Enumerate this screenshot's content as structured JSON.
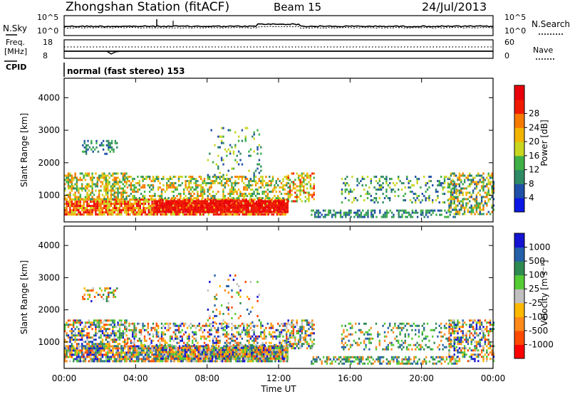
{
  "header": {
    "station_title": "Zhongshan Station (fitACF)",
    "beam_label": "Beam 15",
    "date_label": "24/Jul/2013"
  },
  "nsky_panel": {
    "left_label": "N.Sky",
    "right_label": "N.Search",
    "tick_top": "10^5",
    "tick_bottom": "10^0",
    "right_tick_top": "10^5",
    "right_tick_bottom": "10^0"
  },
  "freq_panel": {
    "left_label_line1": "Freq.",
    "left_label_line2": "[MHz]",
    "tick_top": "18",
    "tick_bottom": "8",
    "right_label": "Nave",
    "right_tick_top": "60",
    "right_tick_bottom": "0"
  },
  "cpid_panel": {
    "label": "CPID",
    "text": "normal (fast stereo) 153"
  },
  "colors": {
    "power_scale": [
      "#0a17e6",
      "#1f4fa6",
      "#2e8a64",
      "#3fb046",
      "#c8d620",
      "#f2b400",
      "#f77a00",
      "#f01a00",
      "#e8000a"
    ],
    "velocity_scale": [
      "#ff0000",
      "#ff4a00",
      "#ff8a1a",
      "#ffb800",
      "#c0c0c0",
      "#55cc33",
      "#2e8a50",
      "#2460a8",
      "#1414d2"
    ]
  },
  "chart_data": [
    {
      "type": "heatmap",
      "title": "",
      "ylabel": "Slant Range [km]",
      "xlabel": "",
      "yticks": [
        "1000",
        "2000",
        "3000",
        "4000"
      ],
      "ylim": [
        180,
        4600
      ],
      "xlim": [
        "00:00",
        "24:00"
      ],
      "colorbar": {
        "label": "Power [dB]",
        "ticks": [
          "4",
          "8",
          "12",
          "16",
          "20",
          "24",
          "28"
        ],
        "range": [
          0,
          32
        ]
      }
    },
    {
      "type": "heatmap",
      "title": "",
      "ylabel": "Slant Range [km]",
      "xlabel": "Time UT",
      "yticks": [
        "1000",
        "2000",
        "3000",
        "4000"
      ],
      "xticks": [
        "00:00",
        "04:00",
        "08:00",
        "12:00",
        "16:00",
        "20:00",
        "00:00"
      ],
      "ylim": [
        180,
        4600
      ],
      "xlim": [
        "00:00",
        "24:00"
      ],
      "colorbar": {
        "label": "Velocity [m s⁻¹]",
        "ticks": [
          "1000",
          "500",
          "100",
          "25",
          "-25",
          "-100",
          "-500",
          "-1000"
        ]
      }
    }
  ]
}
